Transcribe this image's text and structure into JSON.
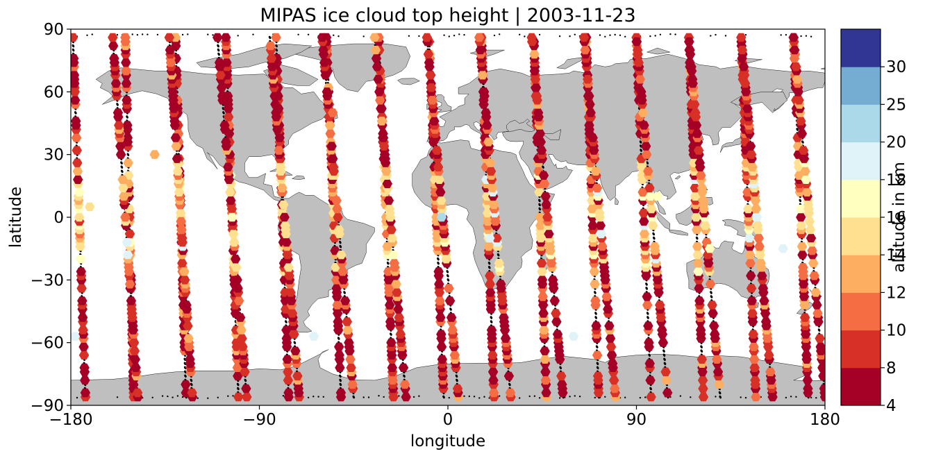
{
  "title": "MIPAS ice cloud top height | 2003-11-23",
  "x_axis": {
    "label": "longitude",
    "range": [
      -180,
      180
    ],
    "ticks": [
      {
        "value": -180,
        "label": "−180"
      },
      {
        "value": -90,
        "label": "−90"
      },
      {
        "value": 0,
        "label": "0"
      },
      {
        "value": 90,
        "label": "90"
      },
      {
        "value": 180,
        "label": "180"
      }
    ]
  },
  "y_axis": {
    "label": "latitude",
    "range": [
      -90,
      90
    ],
    "ticks": [
      {
        "value": -90,
        "label": "−90"
      },
      {
        "value": -60,
        "label": "−60"
      },
      {
        "value": -30,
        "label": "−30"
      },
      {
        "value": 0,
        "label": "0"
      },
      {
        "value": 30,
        "label": "30"
      },
      {
        "value": 60,
        "label": "60"
      },
      {
        "value": 90,
        "label": "90"
      }
    ]
  },
  "colorbar": {
    "label": "altitude in km",
    "bounds": [
      4,
      8,
      10,
      12,
      14,
      16,
      18,
      20,
      25,
      30
    ],
    "colors": [
      "#a50026",
      "#d73027",
      "#f46d43",
      "#fdae61",
      "#fee090",
      "#ffffbf",
      "#e0f3f8",
      "#abd9e9",
      "#74add1",
      "#313695"
    ],
    "tick_labels": [
      "4",
      "8",
      "10",
      "12",
      "14",
      "16",
      "18",
      "20",
      "25",
      "30"
    ]
  },
  "colors": {
    "land": "#bfbfbf",
    "coast": "#000000",
    "track": "#000000",
    "ocean": "#ffffff"
  },
  "chart_data": {
    "type": "scatter",
    "title": "MIPAS ice cloud top height | 2003-11-23",
    "xlabel": "longitude",
    "ylabel": "latitude",
    "xlim": [
      -180,
      180
    ],
    "ylim": [
      -90,
      90
    ],
    "colorbar_label": "altitude in km",
    "orbits": [
      {
        "lon_south": -173,
        "lon_north": -179,
        "descending": true
      },
      {
        "lon_south": -150,
        "lon_north": -154,
        "descending": false
      },
      {
        "lon_south": -148,
        "lon_north": -160,
        "descending": true
      },
      {
        "lon_south": -125,
        "lon_north": -130,
        "descending": false
      },
      {
        "lon_south": -122,
        "lon_north": -133,
        "descending": true
      },
      {
        "lon_south": -100,
        "lon_north": -106,
        "descending": false
      },
      {
        "lon_south": -96,
        "lon_north": -110,
        "descending": true
      },
      {
        "lon_south": -76,
        "lon_north": -82,
        "descending": false
      },
      {
        "lon_south": -71,
        "lon_north": -85,
        "descending": true
      },
      {
        "lon_south": -51,
        "lon_north": -58,
        "descending": false
      },
      {
        "lon_south": -45,
        "lon_north": -60,
        "descending": true
      },
      {
        "lon_south": -26,
        "lon_north": -33,
        "descending": false
      },
      {
        "lon_south": -20,
        "lon_north": -35,
        "descending": true
      },
      {
        "lon_south": -2,
        "lon_north": -9,
        "descending": false
      },
      {
        "lon_south": 5,
        "lon_north": -10,
        "descending": true
      },
      {
        "lon_south": 22,
        "lon_north": 16,
        "descending": false
      },
      {
        "lon_south": 30,
        "lon_north": 15,
        "descending": true
      },
      {
        "lon_south": 47,
        "lon_north": 41,
        "descending": false
      },
      {
        "lon_south": 55,
        "lon_north": 40,
        "descending": true
      },
      {
        "lon_south": 72,
        "lon_north": 66,
        "descending": false
      },
      {
        "lon_south": 80,
        "lon_north": 65,
        "descending": true
      },
      {
        "lon_south": 97,
        "lon_north": 90,
        "descending": false
      },
      {
        "lon_south": 105,
        "lon_north": 90,
        "descending": true
      },
      {
        "lon_south": 122,
        "lon_north": 115,
        "descending": false
      },
      {
        "lon_south": 130,
        "lon_north": 115,
        "descending": true
      },
      {
        "lon_south": 147,
        "lon_north": 140,
        "descending": false
      },
      {
        "lon_south": 155,
        "lon_north": 140,
        "descending": true
      },
      {
        "lon_south": 172,
        "lon_north": 165,
        "descending": false
      },
      {
        "lon_south": 180,
        "lon_north": 165,
        "descending": true
      }
    ],
    "sample_points": [
      {
        "lon": -171,
        "lat": 5,
        "alt_km": 15
      },
      {
        "lon": -176,
        "lat": 12,
        "alt_km": 17
      },
      {
        "lon": -178,
        "lat": -57,
        "alt_km": 19
      },
      {
        "lon": -140,
        "lat": 30,
        "alt_km": 13
      },
      {
        "lon": -64,
        "lat": -57,
        "alt_km": 19
      },
      {
        "lon": -55,
        "lat": 50,
        "alt_km": 11
      },
      {
        "lon": -3,
        "lat": 0,
        "alt_km": 20
      },
      {
        "lon": 20,
        "lat": -10,
        "alt_km": 19
      },
      {
        "lon": 60,
        "lat": -57,
        "alt_km": 19
      },
      {
        "lon": 160,
        "lat": -15,
        "alt_km": 19
      },
      {
        "lon": 100,
        "lat": 10,
        "alt_km": 17
      },
      {
        "lon": 125,
        "lat": -15,
        "alt_km": 17
      }
    ]
  }
}
